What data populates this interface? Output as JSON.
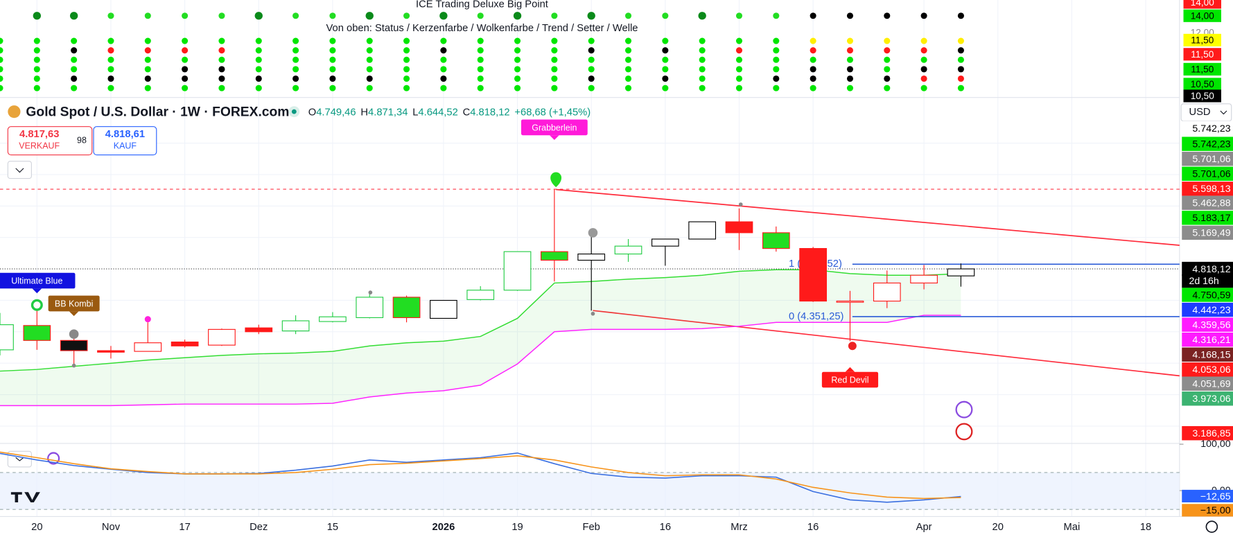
{
  "top_panel": {
    "title": "ICE Trading Deluxe Big Point",
    "caption": "Von oben: Status / Kerzenfarbe / Wolkenfarbe / Trend / Setter / Welle",
    "tags": [
      {
        "value": 14,
        "label": "14,00",
        "bg": "#ff1a1a",
        "fg": "#ffffff"
      },
      {
        "value": 14,
        "label": "14,00",
        "bg": "#00e600",
        "fg": "#000000"
      },
      {
        "value": 12,
        "label": "12,00",
        "bg": "#ffffff",
        "fg": "#888888"
      },
      {
        "value": 11.5,
        "label": "11,50",
        "bg": "#ffff00",
        "fg": "#000000"
      },
      {
        "value": 11.5,
        "label": "11,50",
        "bg": "#ff1a1a",
        "fg": "#ffffff"
      },
      {
        "value": 11.5,
        "label": "11,50",
        "bg": "#00e600",
        "fg": "#000000"
      },
      {
        "value": 10.5,
        "label": "10,50",
        "bg": "#00e600",
        "fg": "#000000"
      },
      {
        "value": 10.5,
        "label": "10,50",
        "bg": "#000000",
        "fg": "#ffffff"
      }
    ]
  },
  "header": {
    "symbol": "Gold Spot / U.S. Dollar · 1W · FOREX.com",
    "ohlc": [
      {
        "key": "O",
        "value": "4.749,46"
      },
      {
        "key": "H",
        "value": "4.871,34"
      },
      {
        "key": "L",
        "value": "4.644,52"
      },
      {
        "key": "C",
        "value": "4.818,12"
      }
    ],
    "change": "+68,68 (+1,45%)",
    "sell": {
      "price": "4.817,63",
      "label": "VERKAUF"
    },
    "spread": "98",
    "buy": {
      "price": "4.818,61",
      "label": "KAUF"
    },
    "currency": "USD"
  },
  "chart_data": {
    "type": "candlestick",
    "ylim": [
      3141,
      6449
    ],
    "open": [
      4026,
      4118,
      4118,
      4018,
      4011,
      4103,
      4072,
      4241,
      4211,
      4303,
      4341,
      4541,
      4334,
      4518,
      4610,
      4987,
      4903,
      4964,
      5041,
      5110,
      5279,
      5172,
      5018,
      4503,
      4503,
      4680,
      4749.46
    ],
    "high": [
      4387,
      4433,
      4180,
      4064,
      4295,
      4126,
      4234,
      4272,
      4364,
      4395,
      4587,
      4557,
      4510,
      4649,
      4987,
      5595,
      5156,
      5110,
      5110,
      5279,
      5410,
      5233,
      5033,
      4603,
      4803,
      4856,
      4871.34
    ],
    "low": [
      3972,
      4026,
      3872,
      3941,
      4011,
      4049,
      4064,
      4180,
      4180,
      4295,
      4334,
      4295,
      4334,
      4510,
      4603,
      4695,
      4410,
      4887,
      4849,
      5110,
      5003,
      4987,
      4495,
      4064,
      4434,
      4618,
      4644.52
    ],
    "close": [
      4272,
      4264,
      4018,
      4003,
      4095,
      4064,
      4226,
      4203,
      4310,
      4349,
      4541,
      4341,
      4510,
      4610,
      4987,
      4903,
      4964,
      5041,
      5110,
      5279,
      5172,
      5018,
      4503,
      4495,
      4680,
      4756,
      4818.12
    ],
    "fills": [
      "none",
      "#22dd22",
      "#111111",
      "#ff1a1a",
      "none",
      "#ff1a1a",
      "none",
      "#ff1a1a",
      "none",
      "none",
      "none",
      "#22dd22",
      "none",
      "none",
      "none",
      "#22dd22",
      "none",
      "none",
      "none",
      "none",
      "#ff1a1a",
      "#22dd22",
      "#ff1a1a",
      "none",
      "none",
      "none",
      "none"
    ],
    "strokes": [
      "#22cc44",
      "#ff1a1a",
      "#ff1a1a",
      "#ff1a1a",
      "#ff1a1a",
      "#ff1a1a",
      "#ff1a1a",
      "#ff1a1a",
      "#22cc44",
      "#22cc44",
      "#22cc44",
      "#ff1a1a",
      "#000000",
      "#22cc44",
      "#22cc44",
      "#ff1a1a",
      "#000000",
      "#22cc44",
      "#000000",
      "#000000",
      "#ff1a1a",
      "#ff1a1a",
      "#ff1a1a",
      "#ff1a1a",
      "#ff1a1a",
      "#ff1a1a",
      "#000000"
    ],
    "cloud_upper": [
      3818,
      3834,
      3865,
      3895,
      3926,
      3949,
      3972,
      3987,
      3995,
      4011,
      4064,
      4095,
      4111,
      4157,
      4334,
      4680,
      4695,
      4718,
      4733,
      4756,
      4795,
      4810,
      4810,
      4772,
      4756,
      4756,
      4772
    ],
    "cloud_lower": [
      3480,
      3480,
      3480,
      3480,
      3488,
      3495,
      3495,
      3495,
      3495,
      3503,
      3565,
      3603,
      3626,
      3680,
      3888,
      4203,
      4226,
      4226,
      4226,
      4234,
      4257,
      4295,
      4295,
      4295,
      4295,
      4364,
      4364
    ],
    "price_tags": [
      {
        "value": 5742.23,
        "label": "5.742,23",
        "bg": "#ffffff",
        "fg": "#000000"
      },
      {
        "value": 5742.23,
        "label": "5.742,23",
        "bg": "#00e600",
        "fg": "#000000"
      },
      {
        "value": 5701.06,
        "label": "5.701,06",
        "bg": "#8c8c8c",
        "fg": "#ffffff"
      },
      {
        "value": 5701.06,
        "label": "5.701,06",
        "bg": "#00e600",
        "fg": "#000000"
      },
      {
        "value": 5598.13,
        "label": "5.598,13",
        "bg": "#ff1a1a",
        "fg": "#ffffff"
      },
      {
        "value": 5462.88,
        "label": "5.462,88",
        "bg": "#8c8c8c",
        "fg": "#ffffff"
      },
      {
        "value": 5183.17,
        "label": "5.183,17",
        "bg": "#00e600",
        "fg": "#000000"
      },
      {
        "value": 5169.49,
        "label": "5.169,49",
        "bg": "#8c8c8c",
        "fg": "#ffffff"
      },
      {
        "value": 4818.12,
        "label": "4.818,12",
        "bg": "#000000",
        "fg": "#ffffff"
      },
      {
        "value": 4750.59,
        "label": "4.750,59",
        "bg": "#00e600",
        "fg": "#000000"
      },
      {
        "value": 4442.23,
        "label": "4.442,23",
        "bg": "#1e3cff",
        "fg": "#ffffff"
      },
      {
        "value": 4359.56,
        "label": "4.359,56",
        "bg": "#ff1aff",
        "fg": "#ffffff"
      },
      {
        "value": 4316.21,
        "label": "4.316,21",
        "bg": "#ff1aff",
        "fg": "#ffffff"
      },
      {
        "value": 4168.15,
        "label": "4.168,15",
        "bg": "#7a2222",
        "fg": "#ffffff"
      },
      {
        "value": 4053.06,
        "label": "4.053,06",
        "bg": "#ff1a1a",
        "fg": "#ffffff"
      },
      {
        "value": 4051.69,
        "label": "4.051,69",
        "bg": "#8c8c8c",
        "fg": "#ffffff"
      },
      {
        "value": 3973.06,
        "label": "3.973,06",
        "bg": "#3cb371",
        "fg": "#ffffff"
      },
      {
        "value": 3186.85,
        "label": "3.186,85",
        "bg": "#ff1a1a",
        "fg": "#ffffff"
      }
    ],
    "countdown": "2d 16h",
    "resistance": 5598.13,
    "last_price": 4818.12,
    "fib": {
      "levels": [
        4864,
        4351.25
      ],
      "labels": [
        "1 (",
        "0 (4.351,25)"
      ],
      "label_tail": "52)"
    },
    "signals": [
      {
        "label": "Grabberlein",
        "index": 15,
        "color": "#ff1ad9"
      },
      {
        "label": "Ultimate Blue",
        "index": 1,
        "color": "#1212e0"
      },
      {
        "label": "BB Kombi",
        "index": 2,
        "color": "#9a5a10"
      },
      {
        "label": "Red Devil",
        "index": 23,
        "color": "#ff1a1a"
      }
    ],
    "x_labels": [
      "20",
      "Nov",
      "17",
      "Dez",
      "15",
      "2026",
      "19",
      "Feb",
      "16",
      "Mrz",
      "16",
      "Apr",
      "20",
      "Mai",
      "18"
    ],
    "oscillator": {
      "ylim": [
        -52.5,
        100
      ],
      "yticks": [
        {
          "value": 100,
          "label": "100,00"
        },
        {
          "value": 0,
          "label": "0,00"
        }
      ],
      "series": [
        {
          "color": "#3a6fe0",
          "values": [
            80,
            66,
            54,
            46,
            39,
            36,
            36,
            37,
            44,
            53,
            66,
            61,
            66,
            71,
            81,
            58,
            37,
            29,
            27,
            32,
            32,
            29,
            -2,
            -20,
            -25,
            -20,
            -12.65
          ]
        },
        {
          "color": "#f7931a",
          "values": [
            83,
            71,
            58,
            47,
            41,
            36,
            36,
            36,
            39,
            46,
            56,
            59,
            64,
            69,
            75,
            66,
            51,
            39,
            32,
            34,
            34,
            25,
            7,
            -5,
            -14,
            -17,
            -15
          ]
        }
      ],
      "tags": [
        {
          "value": -12.65,
          "label": "−12,65",
          "bg": "#2962ff",
          "fg": "#ffffff"
        },
        {
          "value": -15,
          "label": "−15,00",
          "bg": "#f7931a",
          "fg": "#000000"
        }
      ]
    }
  }
}
